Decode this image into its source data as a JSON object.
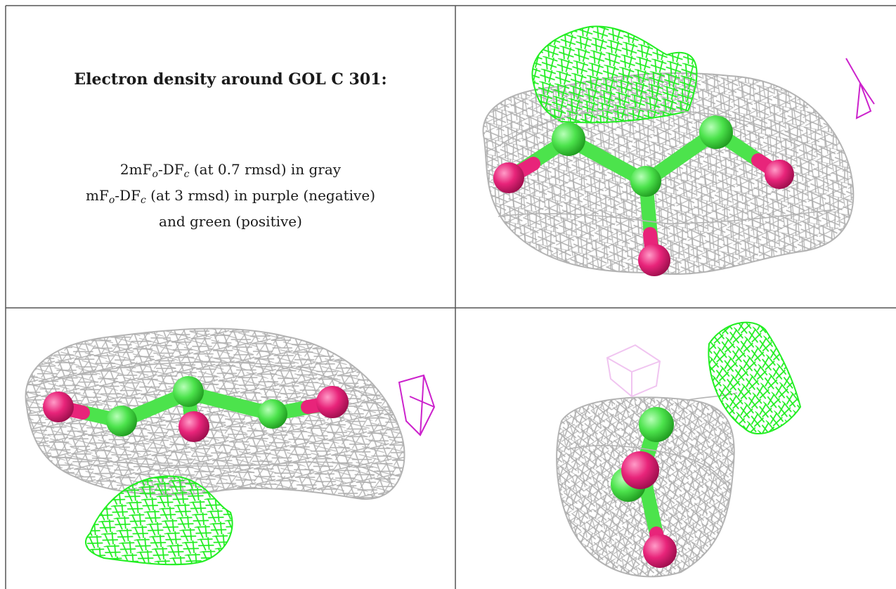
{
  "caption": {
    "title": "Electron density around GOL C 301:",
    "line1": {
      "pre": "2mF",
      "sub1": "o",
      "mid": "-DF",
      "sub2": "c",
      "post": " (at 0.7 rmsd) in gray"
    },
    "line2": {
      "pre": "mF",
      "sub1": "o",
      "mid": "-DF",
      "sub2": "c",
      "post": " (at 3 rmsd) in purple (negative)"
    },
    "line3": "and green (positive)"
  },
  "colors": {
    "mesh_2fofc": "#b4b4b4",
    "mesh_positive": "#22ee22",
    "mesh_negative": "#cc22cc",
    "mesh_negative_faded": "#f0c4f0",
    "carbon": "#4ce34c",
    "oxygen": "#e8247a",
    "border": "#555555"
  },
  "panels": [
    "view-1",
    "view-2",
    "view-3"
  ]
}
